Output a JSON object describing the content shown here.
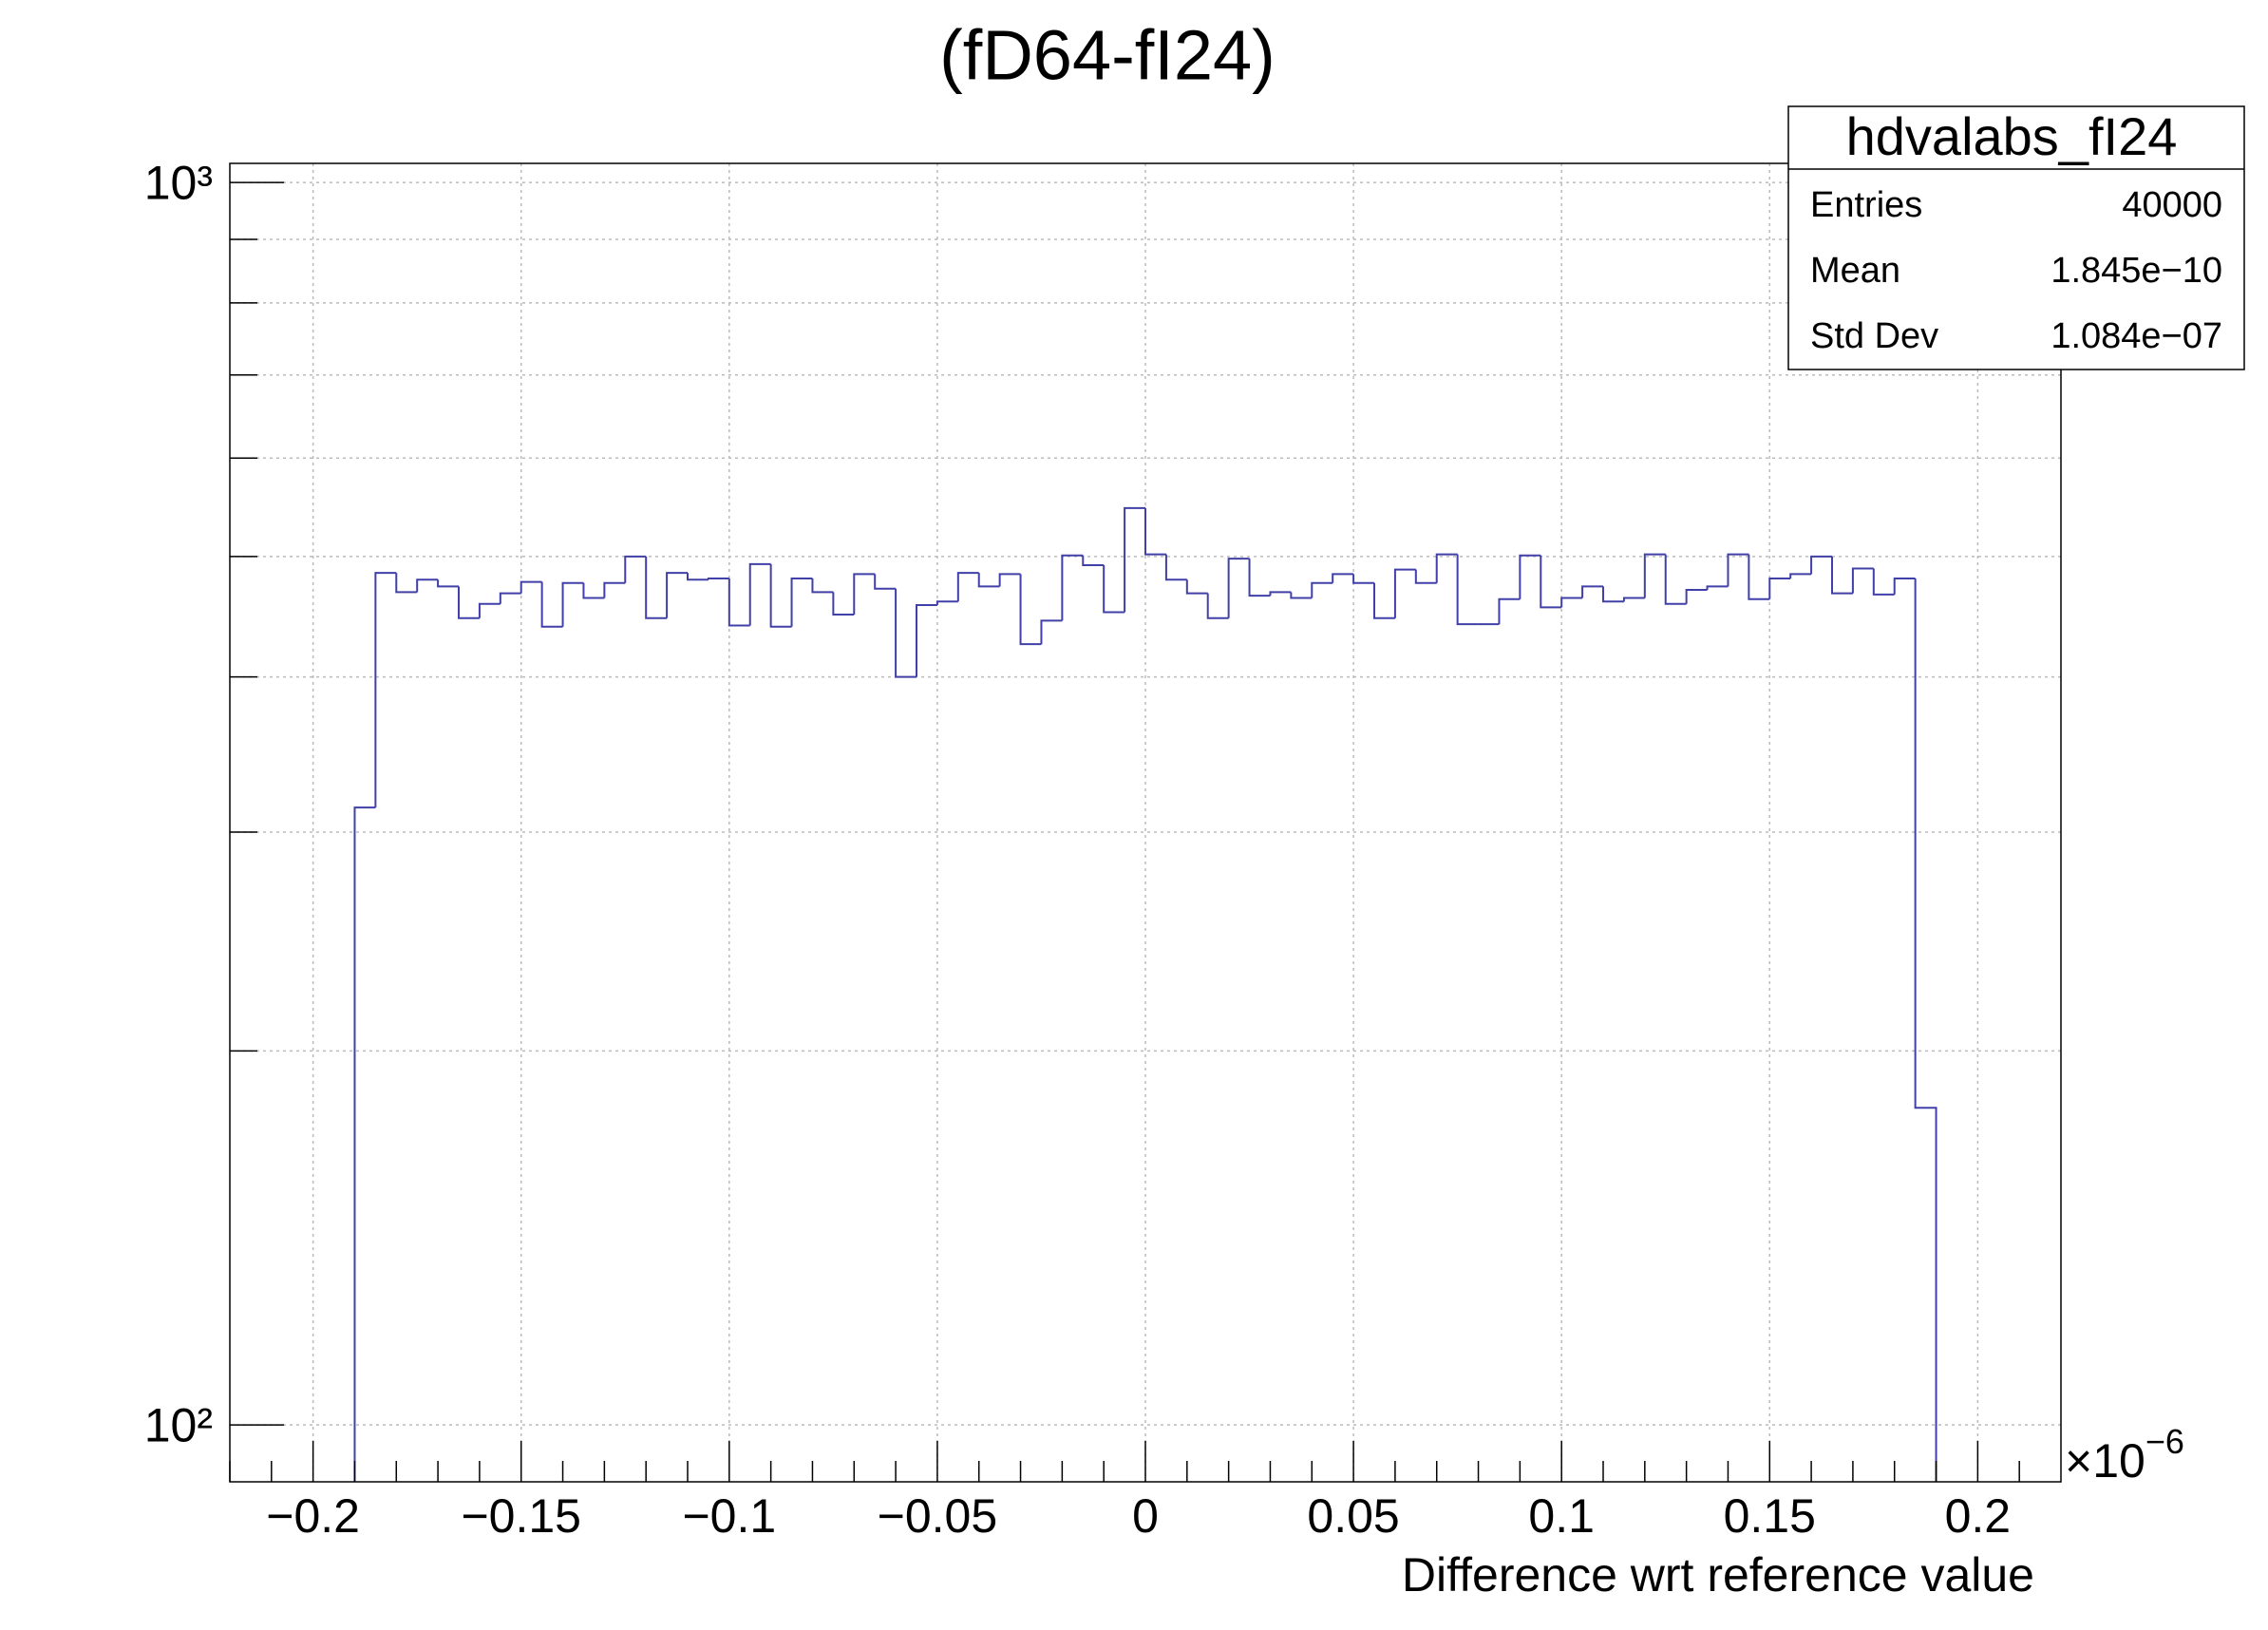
{
  "chart_data": {
    "type": "histogram",
    "title": "(fD64-fI24)",
    "x_label": "Difference wrt reference value",
    "x_multiplier": {
      "base": "×10",
      "exponent": "−6"
    },
    "bins": [
      -0.19,
      -0.185,
      -0.18,
      -0.175,
      -0.17,
      -0.165,
      -0.16,
      -0.155,
      -0.15,
      -0.145,
      -0.14,
      -0.135,
      -0.13,
      -0.125,
      -0.12,
      -0.115,
      -0.11,
      -0.105,
      -0.1,
      -0.095,
      -0.09,
      -0.085,
      -0.08,
      -0.075,
      -0.07,
      -0.065,
      -0.06,
      -0.055,
      -0.05,
      -0.045,
      -0.04,
      -0.035,
      -0.03,
      -0.025,
      -0.02,
      -0.015,
      -0.01,
      -0.005,
      0,
      0.005,
      0.01,
      0.015,
      0.02,
      0.025,
      0.03,
      0.035,
      0.04,
      0.045,
      0.05,
      0.055,
      0.06,
      0.065,
      0.07,
      0.075,
      0.08,
      0.085,
      0.09,
      0.095,
      0.1,
      0.105,
      0.11,
      0.115,
      0.12,
      0.125,
      0.13,
      0.135,
      0.14,
      0.145,
      0.15,
      0.155,
      0.16,
      0.165,
      0.17,
      0.175,
      0.18,
      0.185,
      0.19
    ],
    "values": [
      314,
      485,
      468,
      479,
      473,
      446,
      458,
      467,
      477,
      439,
      476,
      463,
      476,
      500,
      446,
      485,
      479,
      480,
      440,
      493,
      439,
      480,
      468,
      449,
      484,
      471,
      400,
      457,
      460,
      485,
      473,
      484,
      425,
      444,
      501,
      492,
      451,
      547,
      502,
      479,
      467,
      446,
      498,
      465,
      468,
      463,
      476,
      484,
      476,
      446,
      488,
      476,
      502,
      441,
      441,
      462,
      501,
      455,
      463,
      473,
      460,
      463,
      502,
      458,
      470,
      473,
      502,
      462,
      480,
      484,
      500,
      467,
      489,
      466,
      480,
      180
    ],
    "color": "#4040a8",
    "xlim": [
      -0.22,
      0.22
    ],
    "xticks": [
      {
        "value": -0.2,
        "label": "−0.2"
      },
      {
        "value": -0.15,
        "label": "−0.15"
      },
      {
        "value": -0.1,
        "label": "−0.1"
      },
      {
        "value": -0.05,
        "label": "−0.05"
      },
      0,
      0.05,
      0.1,
      0.15,
      0.2
    ],
    "xminorticks": [
      -0.22,
      -0.21,
      -0.19,
      -0.18,
      -0.17,
      -0.16,
      -0.14,
      -0.13,
      -0.12,
      -0.11,
      -0.09,
      -0.08,
      -0.07,
      -0.06,
      -0.04,
      -0.03,
      -0.02,
      -0.01,
      0.01,
      0.02,
      0.03,
      0.04,
      0.06,
      0.07,
      0.08,
      0.09,
      0.11,
      0.12,
      0.13,
      0.14,
      0.16,
      0.17,
      0.18,
      0.19,
      0.21
    ],
    "ylim": [
      90,
      1036
    ],
    "log_y": true,
    "yticks": [
      {
        "value": 100,
        "label": "10²"
      },
      {
        "value": 1000,
        "label": "10³"
      }
    ],
    "yminorticks": [
      200,
      300,
      400,
      500,
      600,
      700,
      800,
      900
    ],
    "grid": true,
    "stats_box": {
      "title": "hdvalabs_fI24",
      "rows": [
        [
          "Entries",
          "40000"
        ],
        [
          "Mean",
          "1.845e−10"
        ],
        [
          "Std Dev",
          "1.084e−07"
        ]
      ]
    }
  }
}
